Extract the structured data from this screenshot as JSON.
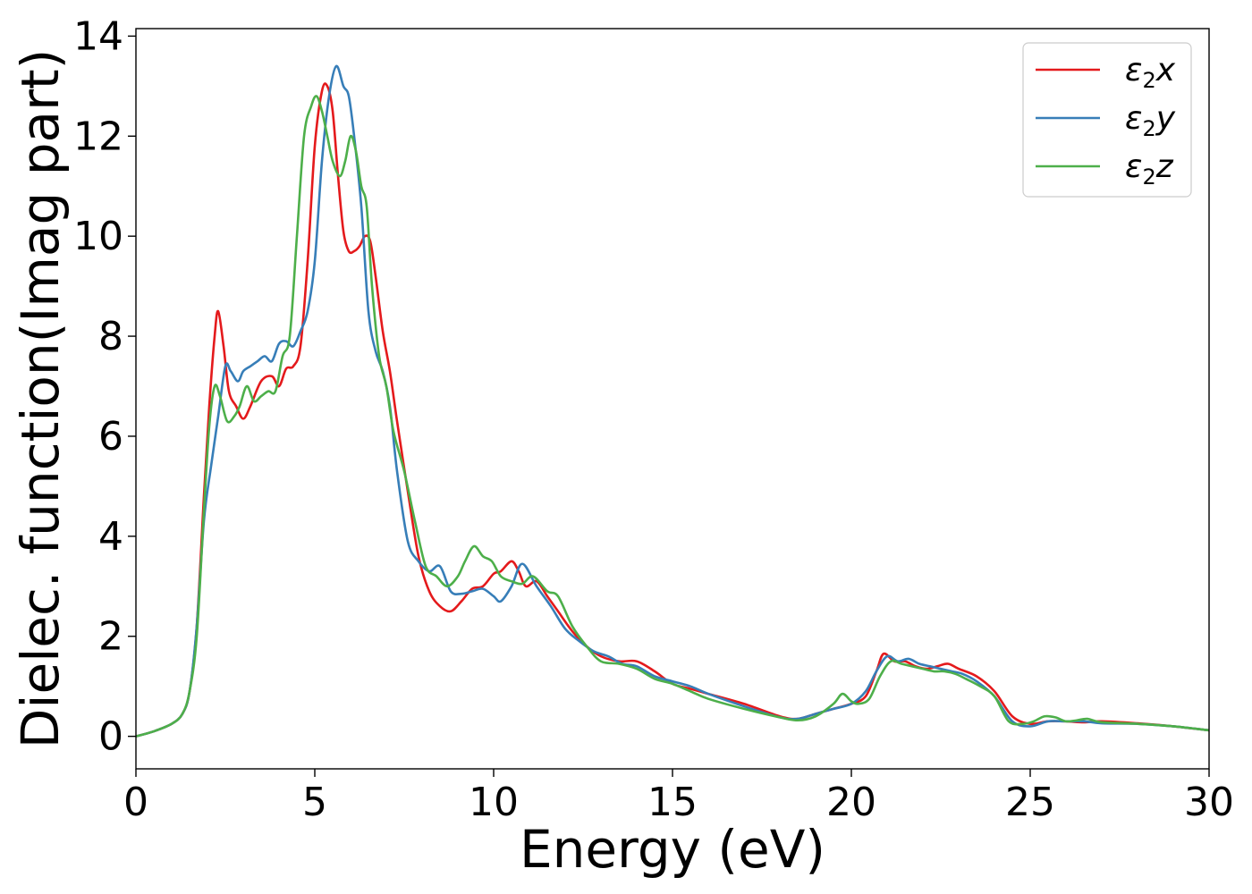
{
  "chart_data": {
    "type": "line",
    "xlabel": "Energy (eV)",
    "ylabel": "Dielec. function(Imag part)",
    "xlim": [
      0,
      30
    ],
    "ylim": [
      -0.65,
      14.15
    ],
    "xticks": [
      0,
      5,
      10,
      15,
      20,
      25,
      30
    ],
    "yticks": [
      0,
      2,
      4,
      6,
      8,
      10,
      12,
      14
    ],
    "grid": false,
    "legend_position": "top-right",
    "series": [
      {
        "name": "ε₂x",
        "legend_base": "ε",
        "legend_sub": "2",
        "legend_suffix": "x",
        "color": "#e41a1c",
        "x": [
          0,
          0.5,
          1,
          1.3,
          1.5,
          1.7,
          1.9,
          2.05,
          2.2,
          2.3,
          2.45,
          2.6,
          2.8,
          3.0,
          3.2,
          3.5,
          3.8,
          4.0,
          4.2,
          4.4,
          4.6,
          4.8,
          5.0,
          5.2,
          5.35,
          5.5,
          5.65,
          5.8,
          5.95,
          6.1,
          6.25,
          6.4,
          6.55,
          6.7,
          6.9,
          7.1,
          7.3,
          7.6,
          7.9,
          8.2,
          8.5,
          8.8,
          9.1,
          9.4,
          9.7,
          10.0,
          10.2,
          10.5,
          10.7,
          10.9,
          11.2,
          11.5,
          11.8,
          12.2,
          12.6,
          13.0,
          13.5,
          14.0,
          14.5,
          15.0,
          15.5,
          16.0,
          17.0,
          18.0,
          18.5,
          19.0,
          19.5,
          20.0,
          20.4,
          20.7,
          20.9,
          21.2,
          21.5,
          21.8,
          22.1,
          22.4,
          22.7,
          23.0,
          23.5,
          24.0,
          24.5,
          25.0,
          25.5,
          26.0,
          26.5,
          27.0,
          28.0,
          29.0,
          30.0
        ],
        "y": [
          0,
          0.1,
          0.25,
          0.45,
          0.9,
          2.2,
          4.8,
          6.6,
          8.0,
          8.5,
          7.8,
          6.9,
          6.6,
          6.35,
          6.6,
          7.1,
          7.2,
          7.0,
          7.35,
          7.4,
          7.8,
          9.5,
          11.8,
          12.9,
          13.0,
          12.5,
          11.2,
          10.1,
          9.7,
          9.7,
          9.8,
          10.0,
          9.9,
          9.2,
          8.1,
          7.3,
          6.3,
          4.9,
          3.6,
          2.9,
          2.6,
          2.5,
          2.7,
          2.95,
          3.0,
          3.25,
          3.3,
          3.5,
          3.3,
          3.0,
          3.1,
          2.8,
          2.5,
          2.1,
          1.8,
          1.6,
          1.5,
          1.5,
          1.3,
          1.05,
          0.95,
          0.85,
          0.65,
          0.4,
          0.35,
          0.45,
          0.55,
          0.65,
          0.8,
          1.3,
          1.65,
          1.5,
          1.5,
          1.4,
          1.35,
          1.4,
          1.45,
          1.35,
          1.2,
          0.9,
          0.4,
          0.25,
          0.3,
          0.3,
          0.28,
          0.3,
          0.26,
          0.2,
          0.12
        ]
      },
      {
        "name": "ε₂y",
        "legend_base": "ε",
        "legend_sub": "2",
        "legend_suffix": "y",
        "color": "#377eb8",
        "x": [
          0,
          0.5,
          1,
          1.3,
          1.5,
          1.7,
          1.9,
          2.1,
          2.3,
          2.5,
          2.65,
          2.85,
          3.0,
          3.2,
          3.4,
          3.6,
          3.8,
          4.0,
          4.2,
          4.4,
          4.6,
          4.8,
          5.0,
          5.2,
          5.4,
          5.6,
          5.8,
          5.95,
          6.1,
          6.3,
          6.5,
          6.7,
          6.9,
          7.1,
          7.3,
          7.6,
          7.9,
          8.2,
          8.5,
          8.8,
          9.1,
          9.4,
          9.7,
          10.0,
          10.2,
          10.5,
          10.8,
          11.2,
          11.6,
          12.0,
          12.4,
          12.8,
          13.2,
          13.6,
          14.0,
          14.5,
          15.0,
          15.5,
          16.0,
          17.0,
          18.0,
          18.5,
          19.0,
          19.5,
          20.0,
          20.4,
          20.7,
          21.0,
          21.3,
          21.6,
          21.9,
          22.2,
          22.5,
          22.8,
          23.1,
          23.5,
          24.0,
          24.5,
          25.0,
          25.5,
          26.0,
          26.5,
          27.0,
          28.0,
          29.0,
          30.0
        ],
        "y": [
          0,
          0.1,
          0.25,
          0.45,
          0.9,
          2.2,
          4.3,
          5.4,
          6.4,
          7.4,
          7.3,
          7.1,
          7.3,
          7.4,
          7.5,
          7.6,
          7.5,
          7.85,
          7.9,
          7.8,
          8.1,
          8.5,
          9.5,
          11.5,
          12.8,
          13.4,
          13.0,
          12.8,
          12.0,
          10.6,
          8.5,
          7.7,
          7.3,
          6.6,
          5.3,
          3.9,
          3.5,
          3.3,
          3.4,
          2.9,
          2.85,
          2.9,
          2.95,
          2.8,
          2.7,
          3.0,
          3.45,
          3.0,
          2.6,
          2.15,
          1.9,
          1.7,
          1.6,
          1.45,
          1.4,
          1.2,
          1.1,
          1.0,
          0.85,
          0.6,
          0.38,
          0.35,
          0.45,
          0.55,
          0.65,
          0.9,
          1.3,
          1.6,
          1.5,
          1.55,
          1.45,
          1.4,
          1.35,
          1.3,
          1.25,
          1.1,
          0.8,
          0.3,
          0.2,
          0.3,
          0.3,
          0.3,
          0.26,
          0.25,
          0.2,
          0.12
        ]
      },
      {
        "name": "ε₂z",
        "legend_base": "ε",
        "legend_sub": "2",
        "legend_suffix": "z",
        "color": "#4daf4a",
        "x": [
          0,
          0.5,
          1,
          1.3,
          1.5,
          1.7,
          1.9,
          2.05,
          2.2,
          2.35,
          2.55,
          2.75,
          2.9,
          3.1,
          3.3,
          3.5,
          3.7,
          3.9,
          4.1,
          4.3,
          4.5,
          4.7,
          4.9,
          5.05,
          5.2,
          5.35,
          5.5,
          5.7,
          5.85,
          6.0,
          6.15,
          6.3,
          6.45,
          6.6,
          6.8,
          7.0,
          7.2,
          7.5,
          7.8,
          8.1,
          8.4,
          8.7,
          9.0,
          9.2,
          9.45,
          9.7,
          9.95,
          10.2,
          10.5,
          10.8,
          11.1,
          11.5,
          11.8,
          12.2,
          12.6,
          13.0,
          13.5,
          14.0,
          14.5,
          15.0,
          15.5,
          16.0,
          17.0,
          18.0,
          18.5,
          19.0,
          19.5,
          19.75,
          20.0,
          20.2,
          20.5,
          20.8,
          21.1,
          21.4,
          21.7,
          22.0,
          22.3,
          22.6,
          22.9,
          23.2,
          23.6,
          24.0,
          24.4,
          24.8,
          25.1,
          25.4,
          25.7,
          26.0,
          26.3,
          26.6,
          27.0,
          28.0,
          29.0,
          30.0
        ],
        "y": [
          0,
          0.1,
          0.25,
          0.45,
          0.9,
          2.0,
          4.5,
          6.2,
          7.0,
          6.8,
          6.3,
          6.4,
          6.6,
          7.0,
          6.7,
          6.8,
          6.9,
          6.9,
          7.6,
          8.0,
          10.0,
          12.0,
          12.6,
          12.8,
          12.5,
          12.0,
          11.5,
          11.2,
          11.5,
          12.0,
          11.7,
          11.0,
          10.6,
          9.0,
          7.6,
          7.0,
          6.1,
          5.3,
          4.3,
          3.4,
          3.2,
          3.0,
          3.2,
          3.5,
          3.8,
          3.6,
          3.5,
          3.2,
          3.1,
          3.05,
          3.2,
          2.9,
          2.8,
          2.2,
          1.8,
          1.5,
          1.45,
          1.35,
          1.15,
          1.05,
          0.9,
          0.75,
          0.55,
          0.38,
          0.32,
          0.4,
          0.65,
          0.85,
          0.7,
          0.65,
          0.75,
          1.2,
          1.5,
          1.45,
          1.4,
          1.35,
          1.3,
          1.3,
          1.25,
          1.15,
          1.0,
          0.8,
          0.3,
          0.25,
          0.3,
          0.4,
          0.38,
          0.3,
          0.32,
          0.35,
          0.28,
          0.25,
          0.2,
          0.12
        ]
      }
    ]
  }
}
